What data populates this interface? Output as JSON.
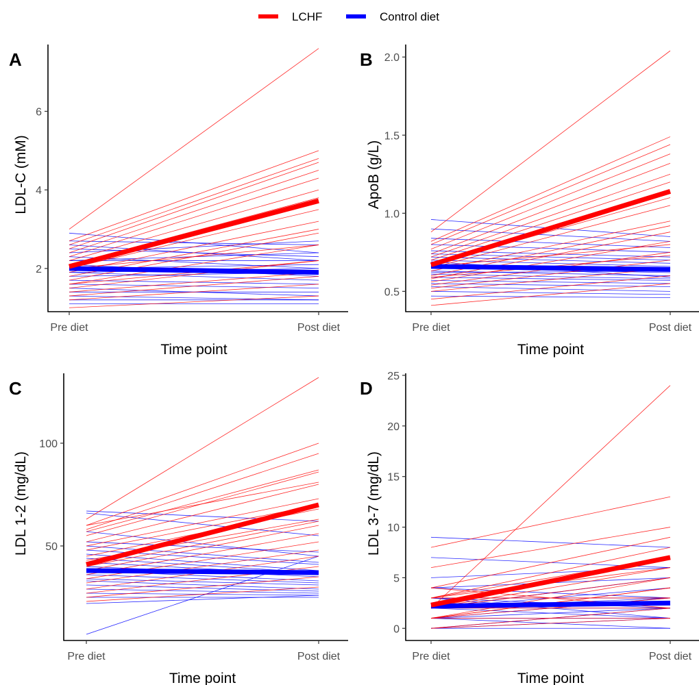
{
  "legend": {
    "items": [
      {
        "label": "LCHF",
        "color": "#ff0000"
      },
      {
        "label": "Control diet",
        "color": "#0000ff"
      }
    ]
  },
  "chart_data": [
    {
      "type": "line",
      "panel": "A",
      "xlabel": "Time point",
      "ylabel": "LDL-C (mM)",
      "categories": [
        "Pre diet",
        "Post diet"
      ],
      "ylim": [
        0.9,
        7.7
      ],
      "yticks": [
        2,
        4,
        6
      ],
      "series": [
        {
          "name": "LCHF",
          "color": "#ff0000",
          "mean": [
            2.05,
            3.72
          ],
          "individuals": [
            [
              3.0,
              7.6
            ],
            [
              2.7,
              5.0
            ],
            [
              2.6,
              4.8
            ],
            [
              2.5,
              4.7
            ],
            [
              2.4,
              4.5
            ],
            [
              2.3,
              4.3
            ],
            [
              2.2,
              4.0
            ],
            [
              2.1,
              3.8
            ],
            [
              2.0,
              3.5
            ],
            [
              1.9,
              3.2
            ],
            [
              1.8,
              3.0
            ],
            [
              1.7,
              2.9
            ],
            [
              1.6,
              2.6
            ],
            [
              1.5,
              2.2
            ],
            [
              1.4,
              1.9
            ],
            [
              1.3,
              1.8
            ],
            [
              1.2,
              1.6
            ],
            [
              1.0,
              1.3
            ],
            [
              2.0,
              2.6
            ],
            [
              1.6,
              2.2
            ]
          ]
        },
        {
          "name": "Control diet",
          "color": "#0000ff",
          "mean": [
            2.0,
            1.9
          ],
          "individuals": [
            [
              2.9,
              2.4
            ],
            [
              2.7,
              2.6
            ],
            [
              2.6,
              2.2
            ],
            [
              2.5,
              2.3
            ],
            [
              2.4,
              2.7
            ],
            [
              2.3,
              2.0
            ],
            [
              2.2,
              2.4
            ],
            [
              2.1,
              1.8
            ],
            [
              2.0,
              2.1
            ],
            [
              1.9,
              1.7
            ],
            [
              1.8,
              1.9
            ],
            [
              1.7,
              1.6
            ],
            [
              1.6,
              1.5
            ],
            [
              1.5,
              1.3
            ],
            [
              1.4,
              1.4
            ],
            [
              1.3,
              1.2
            ],
            [
              1.2,
              1.2
            ],
            [
              1.1,
              1.1
            ],
            [
              2.2,
              2.2
            ],
            [
              1.9,
              2.0
            ]
          ]
        }
      ]
    },
    {
      "type": "line",
      "panel": "B",
      "xlabel": "Time point",
      "ylabel": "ApoB (g/L)",
      "categories": [
        "Pre diet",
        "Post diet"
      ],
      "ylim": [
        0.37,
        2.08
      ],
      "yticks": [
        0.5,
        1.0,
        1.5,
        2.0
      ],
      "ytick_labels": [
        "0.5",
        "1.0",
        "1.5",
        "2.0"
      ],
      "series": [
        {
          "name": "LCHF",
          "color": "#ff0000",
          "mean": [
            0.67,
            1.14
          ],
          "individuals": [
            [
              0.88,
              2.04
            ],
            [
              0.82,
              1.49
            ],
            [
              0.8,
              1.44
            ],
            [
              0.77,
              1.38
            ],
            [
              0.74,
              1.32
            ],
            [
              0.72,
              1.25
            ],
            [
              0.7,
              1.2
            ],
            [
              0.67,
              1.1
            ],
            [
              0.65,
              1.05
            ],
            [
              0.63,
              0.95
            ],
            [
              0.6,
              0.92
            ],
            [
              0.58,
              0.88
            ],
            [
              0.56,
              0.82
            ],
            [
              0.54,
              0.75
            ],
            [
              0.52,
              0.7
            ],
            [
              0.5,
              0.65
            ],
            [
              0.45,
              0.6
            ],
            [
              0.41,
              0.55
            ],
            [
              0.66,
              0.8
            ],
            [
              0.59,
              0.73
            ]
          ]
        },
        {
          "name": "Control diet",
          "color": "#0000ff",
          "mean": [
            0.66,
            0.64
          ],
          "individuals": [
            [
              0.96,
              0.85
            ],
            [
              0.9,
              0.82
            ],
            [
              0.84,
              0.78
            ],
            [
              0.8,
              0.75
            ],
            [
              0.76,
              0.72
            ],
            [
              0.74,
              0.7
            ],
            [
              0.72,
              0.68
            ],
            [
              0.7,
              0.66
            ],
            [
              0.67,
              0.64
            ],
            [
              0.65,
              0.62
            ],
            [
              0.63,
              0.6
            ],
            [
              0.61,
              0.58
            ],
            [
              0.59,
              0.57
            ],
            [
              0.57,
              0.55
            ],
            [
              0.55,
              0.53
            ],
            [
              0.53,
              0.5
            ],
            [
              0.5,
              0.48
            ],
            [
              0.47,
              0.46
            ],
            [
              0.62,
              0.63
            ],
            [
              0.69,
              0.59
            ]
          ]
        }
      ]
    },
    {
      "type": "line",
      "panel": "C",
      "xlabel": "Time point",
      "ylabel": "LDL 1-2 (mg/dL)",
      "categories": [
        "Pre diet",
        "Post diet"
      ],
      "ylim": [
        4,
        134
      ],
      "yticks": [
        50,
        100
      ],
      "series": [
        {
          "name": "LCHF",
          "color": "#ff0000",
          "mean": [
            41,
            70
          ],
          "individuals": [
            [
              63,
              132
            ],
            [
              60,
              100
            ],
            [
              58,
              95
            ],
            [
              57,
              87
            ],
            [
              55,
              86
            ],
            [
              52,
              80
            ],
            [
              50,
              73
            ],
            [
              48,
              70
            ],
            [
              45,
              68
            ],
            [
              43,
              63
            ],
            [
              40,
              62
            ],
            [
              38,
              60
            ],
            [
              36,
              56
            ],
            [
              34,
              52
            ],
            [
              32,
              48
            ],
            [
              29,
              45
            ],
            [
              27,
              40
            ],
            [
              25,
              35
            ],
            [
              23,
              30
            ],
            [
              60,
              81
            ]
          ]
        },
        {
          "name": "Control diet",
          "color": "#0000ff",
          "mean": [
            38,
            37
          ],
          "individuals": [
            [
              67,
              62
            ],
            [
              66,
              55
            ],
            [
              57,
              45
            ],
            [
              52,
              47
            ],
            [
              50,
              42
            ],
            [
              48,
              41
            ],
            [
              46,
              38
            ],
            [
              44,
              37
            ],
            [
              42,
              36
            ],
            [
              40,
              35
            ],
            [
              38,
              33
            ],
            [
              36,
              32
            ],
            [
              34,
              31
            ],
            [
              33,
              29
            ],
            [
              31,
              28
            ],
            [
              29,
              27
            ],
            [
              27,
              26
            ],
            [
              25,
              25
            ],
            [
              22,
              26
            ],
            [
              7,
              45
            ]
          ]
        }
      ]
    },
    {
      "type": "line",
      "panel": "D",
      "xlabel": "Time point",
      "ylabel": "LDL 3-7 (mg/dL)",
      "categories": [
        "Pre diet",
        "Post diet"
      ],
      "ylim": [
        -1.2,
        25.2
      ],
      "yticks": [
        0,
        5,
        10,
        15,
        20,
        25
      ],
      "series": [
        {
          "name": "LCHF",
          "color": "#ff0000",
          "mean": [
            2.3,
            7.0
          ],
          "individuals": [
            [
              2,
              24
            ],
            [
              8,
              13
            ],
            [
              6,
              10
            ],
            [
              4,
              9
            ],
            [
              3,
              8
            ],
            [
              3,
              7
            ],
            [
              2,
              7
            ],
            [
              2,
              6
            ],
            [
              2,
              5
            ],
            [
              1,
              5
            ],
            [
              1,
              4
            ],
            [
              1,
              4
            ],
            [
              3,
              3
            ],
            [
              1,
              3
            ],
            [
              0,
              2
            ],
            [
              2,
              2
            ],
            [
              4,
              2
            ],
            [
              1,
              1
            ],
            [
              3,
              6
            ],
            [
              0,
              1
            ]
          ]
        },
        {
          "name": "Control diet",
          "color": "#0000ff",
          "mean": [
            2.2,
            2.5
          ],
          "individuals": [
            [
              9,
              8
            ],
            [
              7,
              6
            ],
            [
              5,
              6
            ],
            [
              4,
              5
            ],
            [
              4,
              3
            ],
            [
              3,
              2
            ],
            [
              3,
              3
            ],
            [
              2,
              4
            ],
            [
              2,
              3
            ],
            [
              2,
              2
            ],
            [
              2,
              1
            ],
            [
              1,
              2
            ],
            [
              1,
              1
            ],
            [
              1,
              3
            ],
            [
              1,
              0
            ],
            [
              0,
              1
            ],
            [
              0,
              2
            ],
            [
              3,
              1
            ],
            [
              2,
              5
            ],
            [
              0,
              0
            ]
          ]
        }
      ]
    }
  ]
}
